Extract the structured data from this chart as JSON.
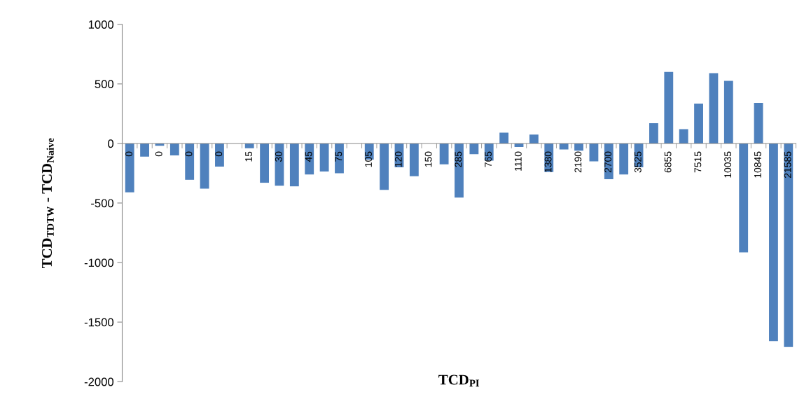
{
  "chart_data": {
    "type": "bar",
    "xlabel": "TCD$_{PI}$",
    "ylabel": "TCD$_{TDTW}$ - TCD$_{Naive}$",
    "categories": [
      "0",
      null,
      "0",
      null,
      "0",
      null,
      "0",
      null,
      "15",
      null,
      "30",
      null,
      "45",
      null,
      "75",
      null,
      "105",
      null,
      "120",
      null,
      "150",
      null,
      "285",
      null,
      "765",
      null,
      "1110",
      null,
      "1380",
      null,
      "2190",
      null,
      "2700",
      null,
      "3525",
      null,
      "6855",
      null,
      "7515",
      null,
      "10035",
      null,
      "10845",
      null,
      "21585"
    ],
    "values": [
      -410,
      -110,
      -20,
      -100,
      -305,
      -380,
      -195,
      0,
      -40,
      -330,
      -355,
      -360,
      -260,
      -235,
      -250,
      0,
      -135,
      -390,
      -200,
      -275,
      0,
      -175,
      -455,
      -90,
      -145,
      90,
      -30,
      75,
      -240,
      -50,
      -60,
      -150,
      -300,
      -260,
      -200,
      170,
      600,
      120,
      335,
      590,
      525,
      -915,
      340,
      -1660,
      -1710
    ],
    "color": "#4f81bd",
    "ylim": [
      -2000,
      1000
    ],
    "yticks": [
      -2000,
      -1500,
      -1000,
      -500,
      0,
      500,
      1000
    ],
    "grid": false,
    "legend": false
  }
}
